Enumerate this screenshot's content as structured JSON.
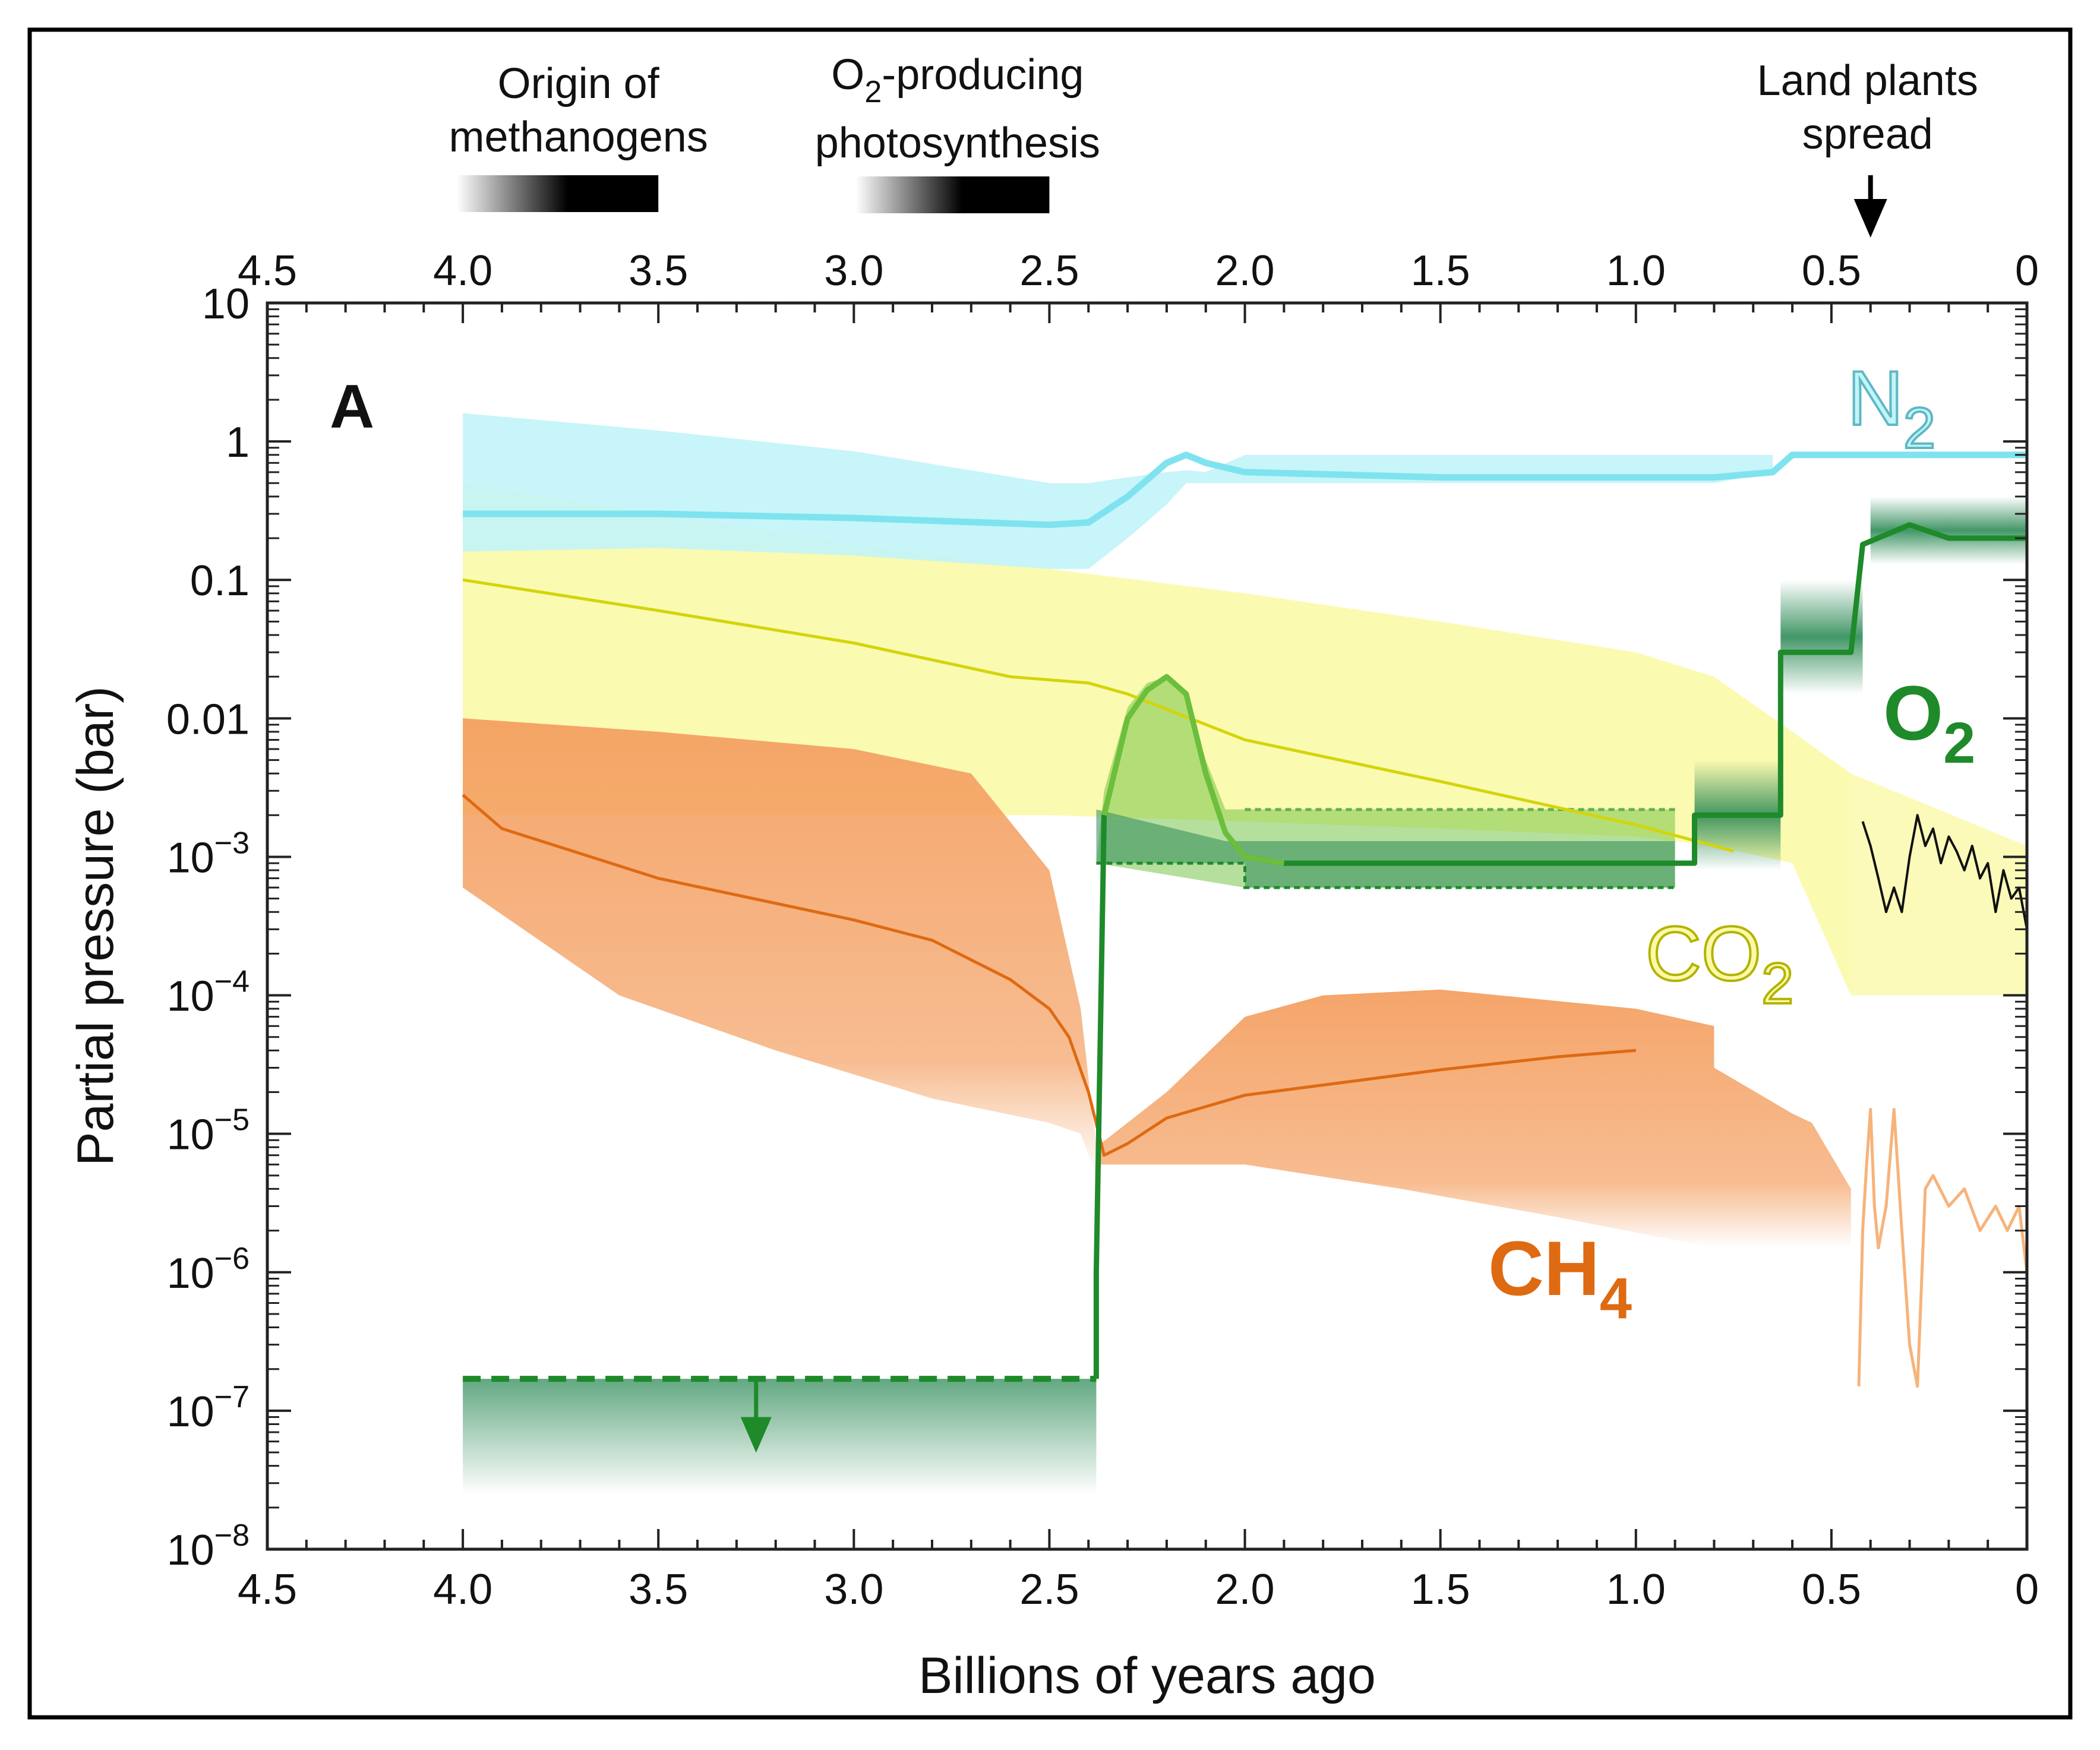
{
  "chart_data": {
    "type": "line",
    "panel_label": "A",
    "xlabel": "Billions of years ago",
    "ylabel": "Partial pressure (bar)",
    "xlim": [
      4.5,
      0
    ],
    "ylim_log10": [
      -8,
      1
    ],
    "x_ticks": [
      "4.5",
      "4.0",
      "3.5",
      "3.0",
      "2.5",
      "2.0",
      "1.5",
      "1.0",
      "0.5",
      "0"
    ],
    "y_ticks": [
      {
        "base": "10",
        "exp": "",
        "value_log": 1
      },
      {
        "base": "1",
        "exp": "",
        "value_log": 0
      },
      {
        "base": "0.1",
        "exp": "",
        "value_log": -1
      },
      {
        "base": "0.01",
        "exp": "",
        "value_log": -2
      },
      {
        "base": "10",
        "exp": "−3",
        "value_log": -3
      },
      {
        "base": "10",
        "exp": "−4",
        "value_log": -4
      },
      {
        "base": "10",
        "exp": "−5",
        "value_log": -5
      },
      {
        "base": "10",
        "exp": "−6",
        "value_log": -6
      },
      {
        "base": "10",
        "exp": "−7",
        "value_log": -7
      },
      {
        "base": "10",
        "exp": "−8",
        "value_log": -8
      }
    ],
    "colors": {
      "n2": "#7fe3ef",
      "n2_band": "#c2f4f8",
      "co2": "#d4d40a",
      "co2_band": "#fbf9a8",
      "o2": "#1e8a2a",
      "o2_light": "#6cbf3c",
      "o2_band": "#2e8b57",
      "ch4": "#de6a12",
      "ch4_band": "#f4a062",
      "ch4_recent": "#f6b37a",
      "modern_co2": "#111111"
    },
    "series": [
      {
        "name": "N",
        "subscript": "2",
        "key": "n2",
        "x": [
          4.0,
          3.5,
          3.0,
          2.5,
          2.4,
          2.3,
          2.2,
          2.15,
          2.1,
          2.0,
          1.5,
          1.0,
          0.8,
          0.65,
          0.6,
          0.4,
          0.0
        ],
        "y": [
          0.3,
          0.3,
          0.28,
          0.25,
          0.26,
          0.4,
          0.7,
          0.8,
          0.7,
          0.6,
          0.55,
          0.55,
          0.55,
          0.6,
          0.8,
          0.8,
          0.8
        ],
        "band_upper": [
          1.6,
          1.2,
          0.85,
          0.5,
          0.5,
          0.55,
          0.6,
          0.62,
          0.6,
          0.8,
          0.8,
          0.8,
          0.8,
          0.8
        ],
        "band_lower": [
          0.16,
          0.17,
          0.15,
          0.12,
          0.12,
          0.2,
          0.35,
          0.5,
          0.5,
          0.5,
          0.5,
          0.5,
          0.5,
          0.6
        ],
        "band_x": [
          4.0,
          3.5,
          3.0,
          2.5,
          2.4,
          2.3,
          2.2,
          2.15,
          2.1,
          2.0,
          1.5,
          1.0,
          0.8,
          0.65
        ]
      },
      {
        "name": "CO",
        "subscript": "2",
        "key": "co2",
        "x": [
          4.0,
          3.5,
          3.0,
          2.6,
          2.4,
          2.3,
          2.0,
          1.5,
          1.0,
          0.75
        ],
        "y": [
          0.1,
          0.06,
          0.035,
          0.02,
          0.018,
          0.015,
          0.007,
          0.0035,
          0.0017,
          0.0011
        ],
        "band_x": [
          4.0,
          3.5,
          3.0,
          2.5,
          2.0,
          1.5,
          1.0,
          0.8,
          0.6,
          0.45
        ],
        "band_upper": [
          0.5,
          0.3,
          0.18,
          0.12,
          0.08,
          0.05,
          0.03,
          0.02,
          0.008,
          0.004
        ],
        "band_lower": [
          0.002,
          0.002,
          0.002,
          0.002,
          0.0018,
          0.0016,
          0.0014,
          0.0012,
          0.0009,
          0.0001
        ]
      },
      {
        "name": "O",
        "subscript": "2",
        "key": "o2",
        "x": [
          4.0,
          2.38,
          2.38,
          2.36,
          2.3,
          2.25,
          2.2,
          2.15,
          2.1,
          2.05,
          2.0,
          1.9,
          1.5,
          1.0,
          0.85,
          0.85,
          0.63,
          0.63,
          0.45,
          0.42,
          0.3,
          0.2,
          0.0
        ],
        "y": [
          1.7e-07,
          1.7e-07,
          1e-06,
          0.002,
          0.01,
          0.016,
          0.02,
          0.015,
          0.004,
          0.0015,
          0.001,
          0.0009,
          0.0009,
          0.0009,
          0.0009,
          0.002,
          0.002,
          0.03,
          0.03,
          0.18,
          0.25,
          0.2,
          0.2
        ]
      },
      {
        "name": "CH",
        "subscript": "4",
        "key": "ch4",
        "x": [
          4.0,
          3.9,
          3.5,
          3.0,
          2.8,
          2.6,
          2.5,
          2.45,
          2.4,
          2.36,
          2.3,
          2.2,
          2.0,
          1.5,
          1.2,
          1.0
        ],
        "y": [
          0.0028,
          0.0016,
          0.0007,
          0.00035,
          0.00025,
          0.00013,
          8e-05,
          5e-05,
          2e-05,
          7e-06,
          8.5e-06,
          1.3e-05,
          1.9e-05,
          2.9e-05,
          3.6e-05,
          4e-05
        ]
      }
    ],
    "annotations": [
      {
        "text": "Origin of",
        "text2": "methanogens",
        "x_start": 4.0,
        "x_end": 3.5
      },
      {
        "text": "O",
        "sub": "2",
        "text_rest": "-producing",
        "text2": "photosynthesis",
        "x_start": 3.0,
        "x_end": 2.5
      },
      {
        "text": "Land plants",
        "text2": "spread",
        "x": 0.4
      }
    ]
  }
}
